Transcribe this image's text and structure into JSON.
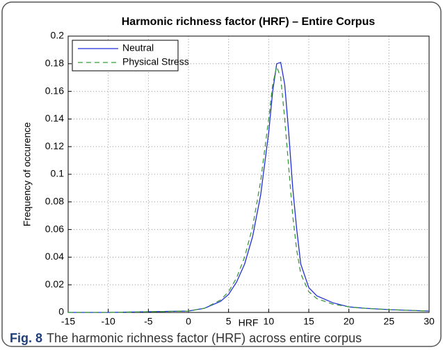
{
  "chart_data": {
    "type": "line",
    "title": "Harmonic richness factor (HRF) – Entire Corpus",
    "xlabel": "HRF",
    "ylabel": "Frequency of occurence",
    "caption_label": "Fig. 8",
    "caption": "The harmonic richness factor (HRF) across entire corpus",
    "x": [
      -15,
      -10,
      -5,
      0,
      2,
      4,
      5,
      6,
      7,
      8,
      9,
      10,
      10.5,
      11,
      11.5,
      12,
      12.5,
      13,
      13.5,
      14,
      15,
      16,
      18,
      20,
      22,
      25,
      30
    ],
    "series": [
      {
        "name": "Neutral",
        "color": "#1f2fd6",
        "dash": false,
        "values": [
          0,
          0,
          0.0005,
          0.001,
          0.003,
          0.008,
          0.013,
          0.022,
          0.035,
          0.055,
          0.085,
          0.13,
          0.16,
          0.18,
          0.181,
          0.165,
          0.13,
          0.09,
          0.06,
          0.035,
          0.018,
          0.012,
          0.007,
          0.004,
          0.003,
          0.002,
          0.001
        ]
      },
      {
        "name": "Physical Stress",
        "color": "#3a9a3a",
        "dash": true,
        "values": [
          0,
          0,
          0.0005,
          0.001,
          0.003,
          0.009,
          0.015,
          0.025,
          0.04,
          0.062,
          0.095,
          0.14,
          0.165,
          0.178,
          0.17,
          0.14,
          0.105,
          0.07,
          0.045,
          0.028,
          0.015,
          0.01,
          0.006,
          0.004,
          0.003,
          0.002,
          0.001
        ]
      }
    ],
    "xlim": [
      -15,
      30
    ],
    "xticks": [
      -15,
      -10,
      -5,
      0,
      5,
      10,
      15,
      20,
      25,
      30
    ],
    "ylim": [
      0,
      0.2
    ],
    "yticks": [
      0,
      0.02,
      0.04,
      0.06,
      0.08,
      0.1,
      0.12,
      0.14,
      0.16,
      0.18,
      0.2
    ],
    "grid": true,
    "legend": "upper left"
  }
}
